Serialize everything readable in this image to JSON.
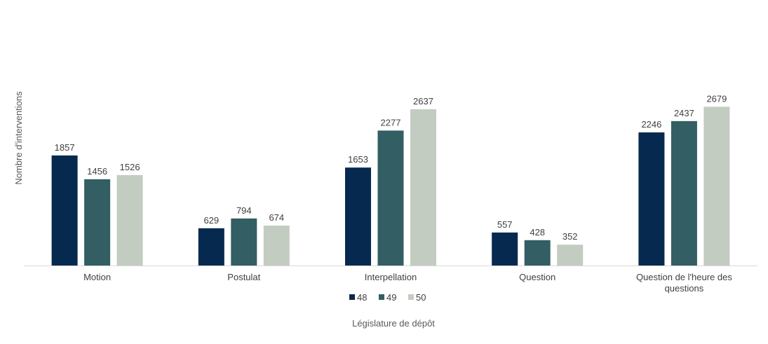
{
  "chart_data": {
    "type": "bar",
    "title": "",
    "xlabel": "Législature de dépôt",
    "ylabel": "Nombre d'interventions",
    "categories": [
      "Motion",
      "Postulat",
      "Interpellation",
      "Question",
      "Question de l'heure des questions"
    ],
    "series": [
      {
        "name": "48",
        "color": "#06294f",
        "values": [
          1857,
          629,
          1653,
          557,
          2246
        ]
      },
      {
        "name": "49",
        "color": "#335e63",
        "values": [
          1456,
          794,
          2277,
          428,
          2437
        ]
      },
      {
        "name": "50",
        "color": "#c3ccc0",
        "values": [
          1526,
          674,
          2637,
          352,
          2679
        ]
      }
    ],
    "ylim": [
      0,
      2800
    ],
    "grid": false,
    "legend_position": "bottom"
  }
}
